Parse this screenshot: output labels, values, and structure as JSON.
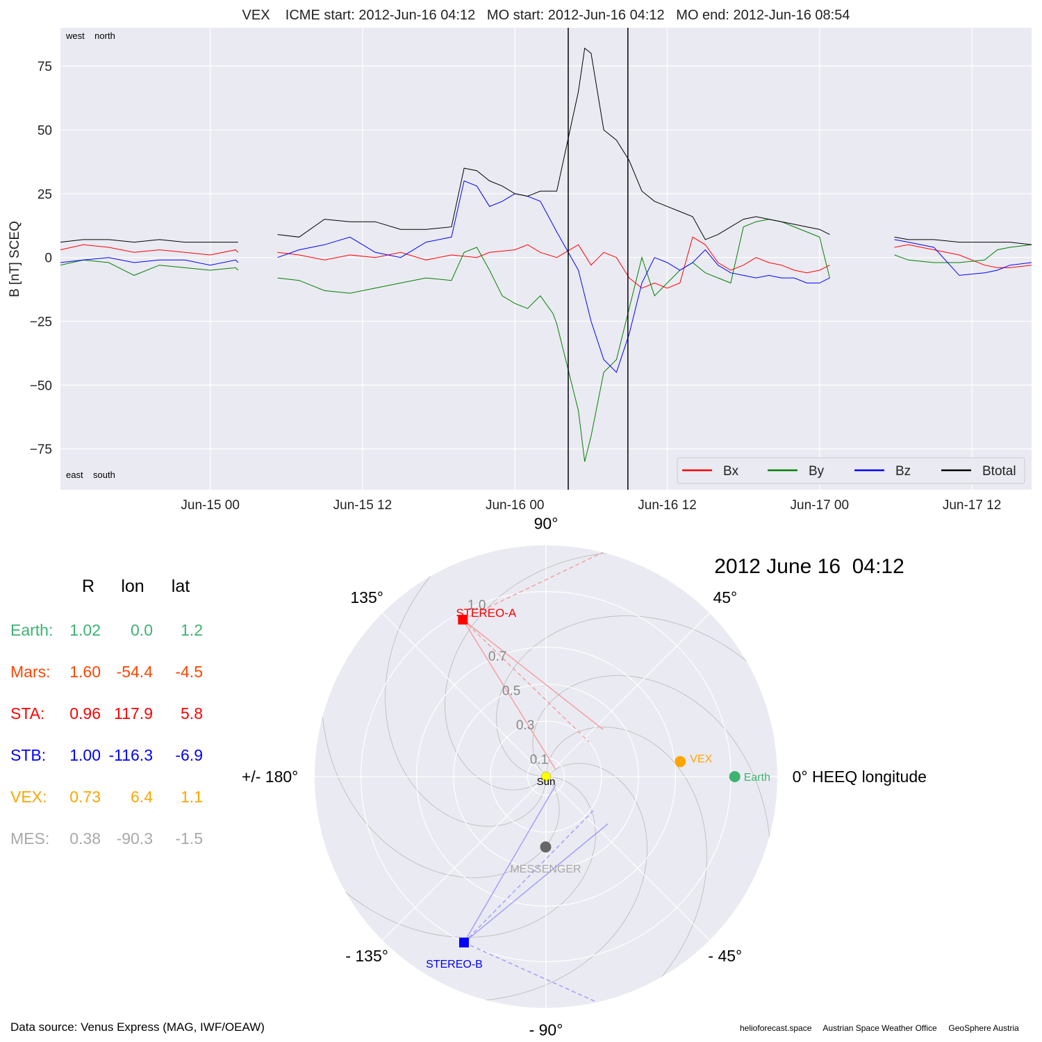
{
  "title": "VEX    ICME start: 2012-Jun-16 04:12   MO start: 2012-Jun-16 04:12   MO end: 2012-Jun-16 08:54",
  "chart_data": [
    {
      "type": "line",
      "ylabel": "B [nT] SCEQ",
      "ylim": [
        -91,
        90
      ],
      "yticks": [
        75,
        50,
        25,
        0,
        -25,
        -50,
        -75
      ],
      "ytick_labels": [
        "75",
        "50",
        "25",
        "0",
        "−25",
        "−50",
        "−75"
      ],
      "xlim_hours": [
        -11.8,
        64.7
      ],
      "x_reference": "2012-Jun-15 00:00",
      "xtick_labels": [
        "Jun-15 00",
        "Jun-15 12",
        "Jun-16 00",
        "Jun-16 12",
        "Jun-17 00",
        "Jun-17 12"
      ],
      "xticks_hours": [
        0,
        12,
        24,
        36,
        48,
        60
      ],
      "corner_labels": {
        "top": "west    north",
        "bottom": "east    south"
      },
      "vertical_lines": [
        {
          "label": "MO start",
          "time": "2012-Jun-16 04:12",
          "hours": 28.2
        },
        {
          "label": "MO end",
          "time": "2012-Jun-16 08:54",
          "hours": 32.9
        }
      ],
      "grid": true,
      "legend": "bottom-right",
      "series": [
        {
          "name": "Bx",
          "color": "#ff0000",
          "points": [
            [
              -11.8,
              3
            ],
            [
              -10,
              5
            ],
            [
              -8,
              4
            ],
            [
              -6,
              2
            ],
            [
              -4,
              3
            ],
            [
              -2,
              2
            ],
            [
              0,
              1
            ],
            [
              2,
              3
            ],
            [
              2.2,
              2
            ],
            [
              5.3,
              2
            ],
            [
              7,
              1
            ],
            [
              9,
              -1
            ],
            [
              11,
              1
            ],
            [
              13,
              0
            ],
            [
              15,
              2
            ],
            [
              17,
              -1
            ],
            [
              19,
              1
            ],
            [
              21,
              0
            ],
            [
              22,
              2
            ],
            [
              24,
              3
            ],
            [
              25,
              5
            ],
            [
              26,
              2
            ],
            [
              27.3,
              0
            ],
            [
              29,
              5
            ],
            [
              30,
              -3
            ],
            [
              31,
              2
            ],
            [
              32,
              0
            ],
            [
              33,
              -8
            ],
            [
              34,
              -12
            ],
            [
              35,
              -10
            ],
            [
              36,
              -12
            ],
            [
              37,
              -10
            ],
            [
              38,
              8
            ],
            [
              39,
              5
            ],
            [
              40,
              -2
            ],
            [
              41,
              -5
            ],
            [
              42,
              -3
            ],
            [
              43,
              0
            ],
            [
              44,
              -2
            ],
            [
              45,
              -3
            ],
            [
              46,
              -5
            ],
            [
              47,
              -6
            ],
            [
              48,
              -5
            ],
            [
              48.8,
              -3
            ],
            [
              53.9,
              4
            ],
            [
              55,
              5
            ],
            [
              57,
              3
            ],
            [
              59,
              1
            ],
            [
              61,
              -3
            ],
            [
              62,
              -4
            ],
            [
              63,
              -4
            ],
            [
              64.7,
              -3
            ]
          ]
        },
        {
          "name": "By",
          "color": "#008000",
          "points": [
            [
              -11.8,
              -3
            ],
            [
              -10,
              -1
            ],
            [
              -8,
              -2
            ],
            [
              -6,
              -7
            ],
            [
              -4,
              -3
            ],
            [
              -2,
              -4
            ],
            [
              0,
              -5
            ],
            [
              2,
              -4
            ],
            [
              2.2,
              -5
            ],
            [
              5.3,
              -8
            ],
            [
              7,
              -9
            ],
            [
              9,
              -13
            ],
            [
              11,
              -14
            ],
            [
              13,
              -12
            ],
            [
              15,
              -10
            ],
            [
              17,
              -8
            ],
            [
              19,
              -9
            ],
            [
              20,
              2
            ],
            [
              21,
              4
            ],
            [
              22,
              -5
            ],
            [
              23,
              -15
            ],
            [
              24,
              -18
            ],
            [
              25,
              -20
            ],
            [
              26,
              -15
            ],
            [
              27,
              -22
            ],
            [
              27.3,
              -26
            ],
            [
              29,
              -60
            ],
            [
              29.5,
              -80
            ],
            [
              30,
              -70
            ],
            [
              31,
              -45
            ],
            [
              32,
              -40
            ],
            [
              33,
              -20
            ],
            [
              34,
              0
            ],
            [
              35,
              -15
            ],
            [
              36,
              -10
            ],
            [
              37,
              -5
            ],
            [
              38,
              -2
            ],
            [
              39,
              -6
            ],
            [
              40,
              -8
            ],
            [
              41,
              -10
            ],
            [
              42,
              12
            ],
            [
              43,
              14
            ],
            [
              44,
              15
            ],
            [
              45,
              14
            ],
            [
              46,
              12
            ],
            [
              47,
              10
            ],
            [
              48,
              8
            ],
            [
              48.8,
              -8
            ],
            [
              53.9,
              1
            ],
            [
              55,
              -1
            ],
            [
              57,
              -2
            ],
            [
              59,
              -2
            ],
            [
              61,
              -1
            ],
            [
              62,
              3
            ],
            [
              63,
              4
            ],
            [
              64.7,
              5
            ]
          ]
        },
        {
          "name": "Bz",
          "color": "#0000ff",
          "points": [
            [
              -11.8,
              -2
            ],
            [
              -10,
              -1
            ],
            [
              -8,
              0
            ],
            [
              -6,
              -2
            ],
            [
              -4,
              -1
            ],
            [
              -2,
              -1
            ],
            [
              0,
              -3
            ],
            [
              2,
              -1
            ],
            [
              2.2,
              -2
            ],
            [
              5.3,
              0
            ],
            [
              7,
              3
            ],
            [
              9,
              5
            ],
            [
              11,
              8
            ],
            [
              13,
              2
            ],
            [
              15,
              0
            ],
            [
              17,
              6
            ],
            [
              19,
              8
            ],
            [
              20,
              30
            ],
            [
              21,
              28
            ],
            [
              22,
              20
            ],
            [
              23,
              22
            ],
            [
              24,
              25
            ],
            [
              25,
              24
            ],
            [
              26,
              22
            ],
            [
              27.3,
              10
            ],
            [
              29,
              -5
            ],
            [
              30,
              -25
            ],
            [
              31,
              -40
            ],
            [
              32,
              -45
            ],
            [
              33,
              -30
            ],
            [
              34,
              -10
            ],
            [
              35,
              0
            ],
            [
              36,
              -2
            ],
            [
              37,
              -5
            ],
            [
              38,
              -2
            ],
            [
              39,
              3
            ],
            [
              40,
              -3
            ],
            [
              41,
              -6
            ],
            [
              42,
              -7
            ],
            [
              43,
              -8
            ],
            [
              44,
              -7
            ],
            [
              45,
              -8
            ],
            [
              46,
              -8
            ],
            [
              47,
              -10
            ],
            [
              48,
              -10
            ],
            [
              48.8,
              -8
            ],
            [
              53.9,
              7
            ],
            [
              55,
              6
            ],
            [
              57,
              4
            ],
            [
              59,
              -7
            ],
            [
              61,
              -6
            ],
            [
              62,
              -5
            ],
            [
              63,
              -3
            ],
            [
              64.7,
              -2
            ]
          ]
        },
        {
          "name": "Btotal",
          "color": "#000000",
          "points": [
            [
              -11.8,
              6
            ],
            [
              -10,
              7
            ],
            [
              -8,
              7
            ],
            [
              -6,
              6
            ],
            [
              -4,
              7
            ],
            [
              -2,
              6
            ],
            [
              0,
              6
            ],
            [
              2,
              6
            ],
            [
              2.2,
              6
            ],
            [
              5.3,
              9
            ],
            [
              7,
              8
            ],
            [
              9,
              15
            ],
            [
              11,
              14
            ],
            [
              13,
              14
            ],
            [
              15,
              11
            ],
            [
              17,
              11
            ],
            [
              19,
              12
            ],
            [
              20,
              35
            ],
            [
              21,
              34
            ],
            [
              22,
              30
            ],
            [
              23,
              28
            ],
            [
              24,
              25
            ],
            [
              25,
              24
            ],
            [
              26,
              26
            ],
            [
              27.3,
              26
            ],
            [
              29,
              65
            ],
            [
              29.5,
              82
            ],
            [
              30,
              80
            ],
            [
              31,
              50
            ],
            [
              32,
              46
            ],
            [
              33,
              38
            ],
            [
              34,
              26
            ],
            [
              35,
              22
            ],
            [
              36,
              20
            ],
            [
              37,
              18
            ],
            [
              38,
              16
            ],
            [
              39,
              7
            ],
            [
              40,
              9
            ],
            [
              41,
              12
            ],
            [
              42,
              15
            ],
            [
              43,
              16
            ],
            [
              44,
              15
            ],
            [
              45,
              14
            ],
            [
              46,
              13
            ],
            [
              47,
              12
            ],
            [
              48,
              11
            ],
            [
              48.8,
              9
            ],
            [
              53.9,
              8
            ],
            [
              55,
              7
            ],
            [
              57,
              7
            ],
            [
              59,
              6
            ],
            [
              61,
              6
            ],
            [
              62,
              6
            ],
            [
              63,
              6
            ],
            [
              64.7,
              5
            ]
          ]
        }
      ]
    },
    {
      "type": "polar",
      "title": "2012 June 16  04:12",
      "angle_labels": [
        {
          "angle": 90,
          "text": "90°"
        },
        {
          "angle": 45,
          "text": "45°"
        },
        {
          "angle": 135,
          "text": "135°"
        },
        {
          "angle": 0,
          "text": "0° HEEQ longitude"
        },
        {
          "angle": 180,
          "text": "+/- 180°"
        },
        {
          "angle": -45,
          "text": "- 45°"
        },
        {
          "angle": -90,
          "text": "- 90°"
        },
        {
          "angle": -135,
          "text": "- 135°"
        }
      ],
      "radial_ticks": [
        {
          "r": 0.1,
          "label": "0.1"
        },
        {
          "r": 0.3,
          "label": "0.3"
        },
        {
          "r": 0.5,
          "label": "0.5"
        },
        {
          "r": 0.7,
          "label": "0.7"
        },
        {
          "r": 1.0,
          "label": "1.0"
        }
      ],
      "rmax": 1.25,
      "bodies": [
        {
          "name": "Sun",
          "r": 0,
          "lon": 0,
          "color": "#ffff00",
          "marker": "circle"
        },
        {
          "name": "Earth",
          "r": 1.02,
          "lon": 0.0,
          "color": "#3cb371",
          "marker": "circle"
        },
        {
          "name": "VEX",
          "r": 0.73,
          "lon": 6.4,
          "color": "#ffa500",
          "marker": "circle"
        },
        {
          "name": "STEREO-A",
          "r": 0.96,
          "lon": 117.9,
          "color": "#ff0000",
          "marker": "square"
        },
        {
          "name": "STEREO-B",
          "r": 1.0,
          "lon": -116.3,
          "color": "#0000ff",
          "marker": "square"
        },
        {
          "name": "MESSENGER",
          "r": 0.38,
          "lon": -90.3,
          "color": "#666666",
          "marker": "circle"
        }
      ]
    }
  ],
  "legend": [
    {
      "name": "Bx",
      "color": "#ff0000"
    },
    {
      "name": "By",
      "color": "#008000"
    },
    {
      "name": "Bz",
      "color": "#0000ff"
    },
    {
      "name": "Btotal",
      "color": "#000000"
    }
  ],
  "table": {
    "headers": [
      "R",
      "lon",
      "lat"
    ],
    "rows": [
      {
        "label": "Earth:",
        "R": "1.02",
        "lon": "0.0",
        "lat": "1.2",
        "color": "#3cb371"
      },
      {
        "label": "Mars:",
        "R": "1.60",
        "lon": "-54.4",
        "lat": "-4.5",
        "color": "#ff4500"
      },
      {
        "label": "STA:",
        "R": "0.96",
        "lon": "117.9",
        "lat": "5.8",
        "color": "#ff0000"
      },
      {
        "label": "STB:",
        "R": "1.00",
        "lon": "-116.3",
        "lat": "-6.9",
        "color": "#0000ff"
      },
      {
        "label": "VEX:",
        "R": "0.73",
        "lon": "6.4",
        "lat": "1.1",
        "color": "#ffa500"
      },
      {
        "label": "MES:",
        "R": "0.38",
        "lon": "-90.3",
        "lat": "-1.5",
        "color": "#a9a9a9"
      }
    ]
  },
  "footer": {
    "data_source": "Data source: Venus Express (MAG, IWF/OEAW)",
    "credits": "helioforecast.space     Austrian Space Weather Office     GeoSphere Austria"
  }
}
